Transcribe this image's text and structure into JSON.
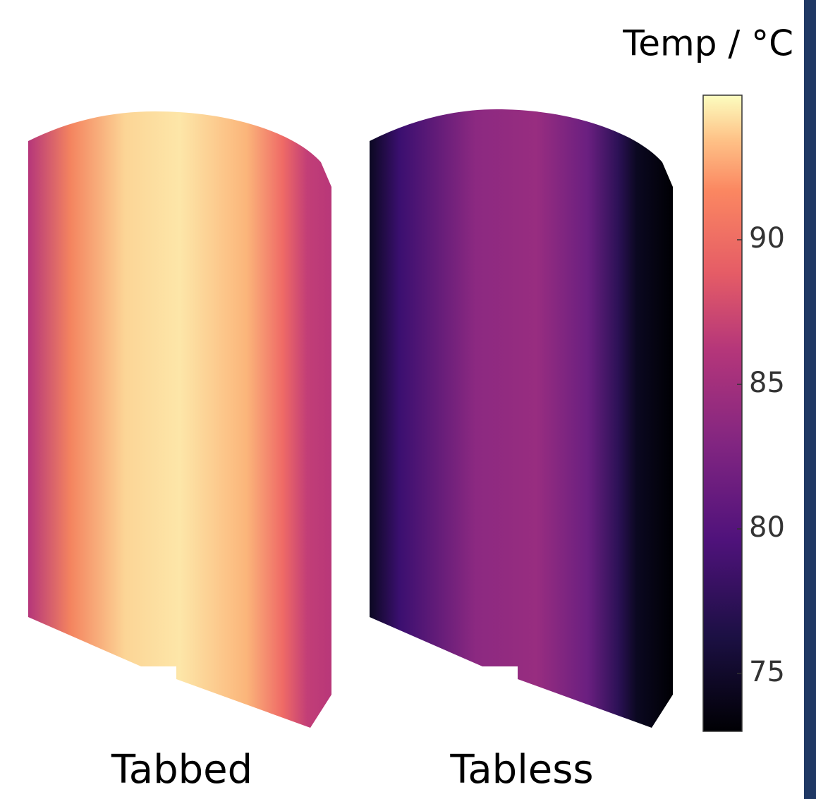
{
  "chart_data": {
    "type": "colorbar",
    "colorbar_label": "Temp / °C",
    "clim": [
      73,
      95
    ],
    "ticks": [
      75,
      80,
      85,
      90
    ],
    "colormap": "magma",
    "panels": [
      "Tabbed",
      "Tabless"
    ]
  }
}
